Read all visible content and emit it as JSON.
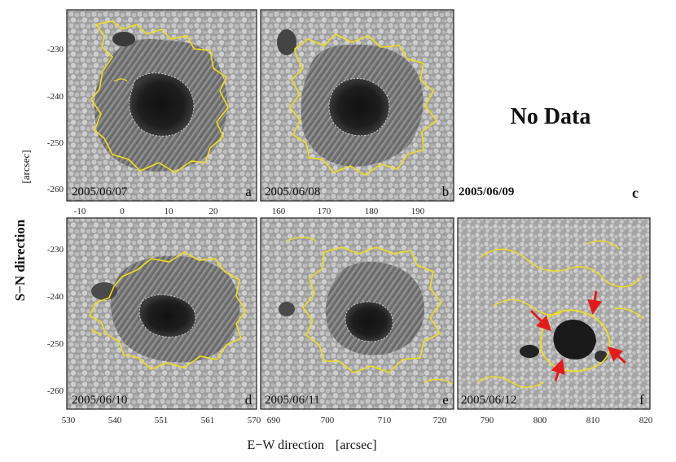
{
  "figure": {
    "ylabel": "S−N direction",
    "ylabel_unit": "[arcsec]",
    "xlabel": "E−W direction",
    "xlabel_unit": "[arcsec]",
    "no_data_label": "No Data"
  },
  "colors": {
    "contour": "#f2dd1a",
    "umbra_boundary": "#ffffff",
    "arrow": "#e21c1c",
    "granulation": "#a8a8a8"
  },
  "panels": [
    {
      "id": "a",
      "date": "2005/06/07",
      "letter": "a",
      "has_data": true,
      "xticks": [
        "-10",
        "0",
        "10",
        "20"
      ],
      "yticks": [
        "-230",
        "-240",
        "-250",
        "-260"
      ]
    },
    {
      "id": "b",
      "date": "2005/06/08",
      "letter": "b",
      "has_data": true,
      "xticks": [
        "160",
        "170",
        "180",
        "190"
      ],
      "yticks": []
    },
    {
      "id": "c",
      "date": "2005/06/09",
      "letter": "c",
      "has_data": false,
      "xticks": [],
      "yticks": []
    },
    {
      "id": "d",
      "date": "2005/06/10",
      "letter": "d",
      "has_data": true,
      "xticks": [
        "530",
        "540",
        "551",
        "561",
        "570"
      ],
      "yticks": [
        "-230",
        "-240",
        "-250",
        "-260"
      ]
    },
    {
      "id": "e",
      "date": "2005/06/11",
      "letter": "e",
      "has_data": true,
      "xticks": [
        "690",
        "700",
        "710",
        "720"
      ],
      "yticks": []
    },
    {
      "id": "f",
      "date": "2005/06/12",
      "letter": "f",
      "has_data": true,
      "xticks": [
        "790",
        "800",
        "810",
        "820"
      ],
      "yticks": []
    }
  ]
}
